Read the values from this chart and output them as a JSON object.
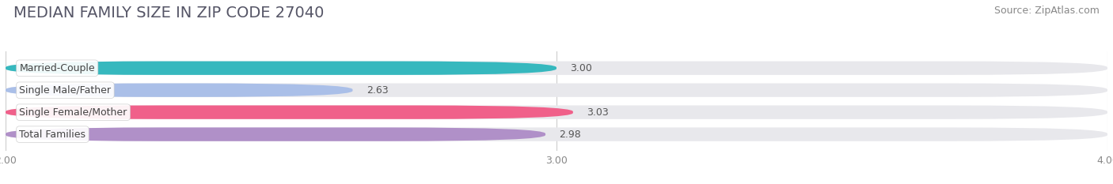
{
  "title": "MEDIAN FAMILY SIZE IN ZIP CODE 27040",
  "source": "Source: ZipAtlas.com",
  "categories": [
    "Married-Couple",
    "Single Male/Father",
    "Single Female/Mother",
    "Total Families"
  ],
  "values": [
    3.0,
    2.63,
    3.03,
    2.98
  ],
  "bar_colors": [
    "#36b8be",
    "#aabfe8",
    "#f0608a",
    "#b090c8"
  ],
  "xlim": [
    2.0,
    4.0
  ],
  "xticks": [
    2.0,
    3.0,
    4.0
  ],
  "xtick_labels": [
    "2.00",
    "3.00",
    "4.00"
  ],
  "background_color": "#ffffff",
  "bar_background_color": "#e8e8ec",
  "title_fontsize": 14,
  "source_fontsize": 9,
  "label_fontsize": 9,
  "value_fontsize": 9,
  "tick_fontsize": 9,
  "bar_height": 0.62
}
